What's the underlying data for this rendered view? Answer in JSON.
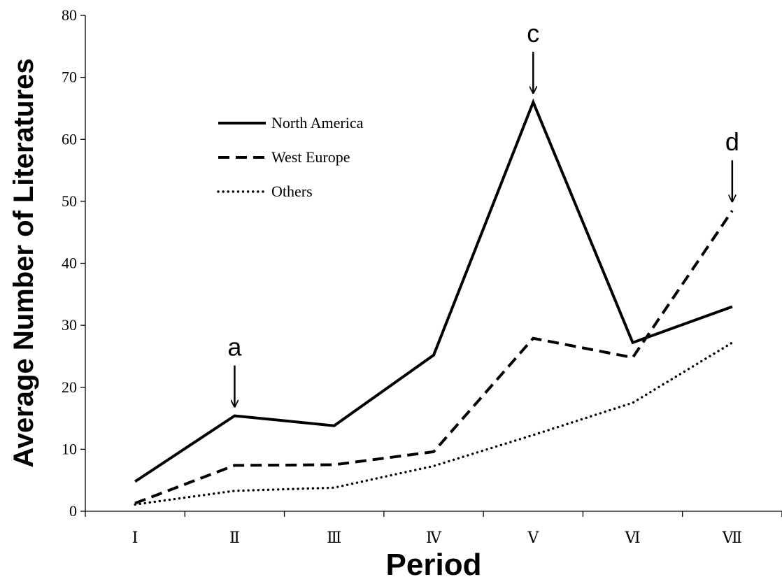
{
  "chart_data": {
    "type": "line",
    "title": "",
    "xlabel": "Period",
    "ylabel": "Average Number of Literatures",
    "categories": [
      "Ⅰ",
      "Ⅱ",
      "Ⅲ",
      "Ⅳ",
      "Ⅴ",
      "Ⅵ",
      "Ⅶ"
    ],
    "ylim": [
      0,
      80
    ],
    "yticks": [
      "0",
      "10",
      "20",
      "30",
      "40",
      "50",
      "60",
      "70",
      "80"
    ],
    "grid": false,
    "legend_position": "upper-left",
    "series": [
      {
        "name": "North America",
        "style": "solid",
        "values": [
          4.8,
          15.4,
          13.8,
          25.2,
          66.0,
          27.2,
          33.0
        ]
      },
      {
        "name": "West Europe",
        "style": "dashed",
        "values": [
          1.3,
          7.4,
          7.5,
          9.6,
          27.9,
          24.8,
          48.5
        ]
      },
      {
        "name": "Others",
        "style": "dotted",
        "values": [
          1.1,
          3.3,
          3.8,
          7.3,
          12.3,
          17.5,
          27.2
        ]
      }
    ],
    "annotations": [
      {
        "text": "a",
        "category": "Ⅱ",
        "value": 15.4
      },
      {
        "text": "c",
        "category": "Ⅴ",
        "value": 66.0
      },
      {
        "text": "d",
        "category": "Ⅶ",
        "value": 48.5
      }
    ]
  }
}
